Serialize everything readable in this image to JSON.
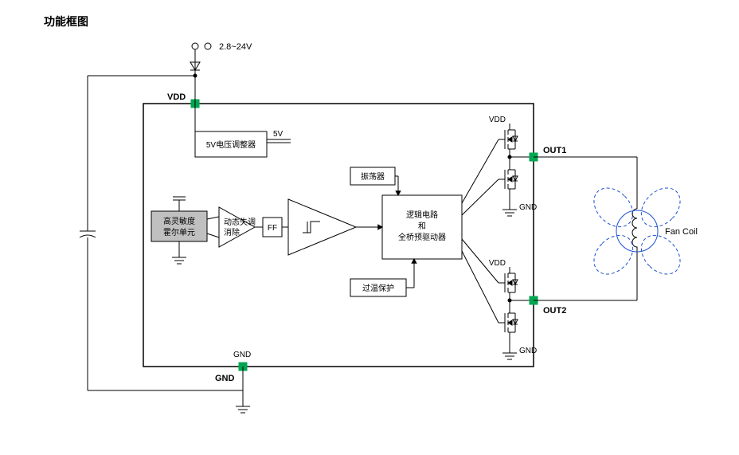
{
  "title": "功能框图",
  "supply_label": "2.8~24V",
  "pins": {
    "vdd": "VDD",
    "gnd": "GND",
    "out1": "OUT1",
    "out2": "OUT2"
  },
  "blocks": {
    "regulator": "5V电压调整器",
    "regulator_out": "5V",
    "hall_l1": "高灵敏度",
    "hall_l2": "霍尔单元",
    "offset_l1": "动态失调",
    "offset_l2": "消除",
    "ff": "FF",
    "osc": "振荡器",
    "logic_l1": "逻辑电路",
    "logic_l2": "和",
    "logic_l3": "全桥预驱动器",
    "otp": "过温保护"
  },
  "mosfet": {
    "vdd": "VDD",
    "gnd": "GND"
  },
  "fan": "Fan Coil",
  "colors": {
    "stroke": "#000000",
    "pin_fill": "#00a651",
    "hall_fill": "#c0c0c0",
    "fan_stroke": "#1b4fd1",
    "text": "#000000"
  },
  "fontsize": {
    "title": 14,
    "label": 11,
    "small": 10
  }
}
